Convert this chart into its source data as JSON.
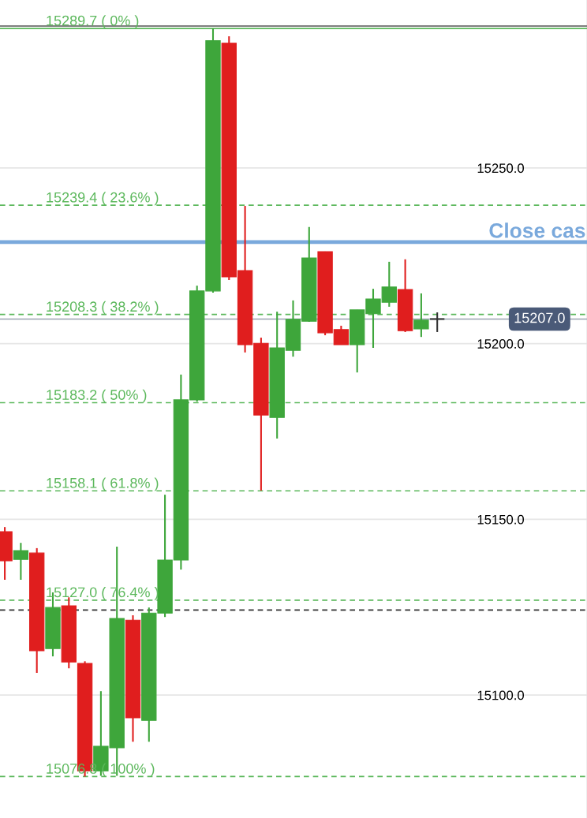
{
  "chart_data": {
    "type": "candlestick",
    "categories": [
      null,
      null,
      null,
      null,
      null,
      null,
      null,
      null,
      null,
      null,
      null,
      null,
      null,
      null,
      null,
      null,
      null,
      null,
      null,
      null,
      null,
      null,
      null,
      null,
      null,
      null,
      null,
      null
    ],
    "ohlc": [
      [
        15146.5,
        15147.8,
        15132.8,
        15138.2
      ],
      [
        15138.6,
        15143.3,
        15132.8,
        15141.1
      ],
      [
        15140.4,
        15141.8,
        15106.3,
        15112.6
      ],
      [
        15113.2,
        15129.2,
        15111.0,
        15124.9
      ],
      [
        15125.4,
        15127.8,
        15107.6,
        15109.4
      ],
      [
        15109.0,
        15109.6,
        15076.8,
        15078.4
      ],
      [
        15078.4,
        15101.1,
        15077.0,
        15085.4
      ],
      [
        15085.0,
        15142.2,
        15077.0,
        15121.8
      ],
      [
        15121.3,
        15122.7,
        15086.7,
        15093.5
      ],
      [
        15092.8,
        15124.9,
        15086.7,
        15123.3
      ],
      [
        15123.3,
        15157.0,
        15122.2,
        15138.4
      ],
      [
        15138.4,
        15191.2,
        15135.7,
        15184.0
      ],
      [
        15184.0,
        15216.5,
        15183.5,
        15215.0
      ],
      [
        15215.0,
        15289.7,
        15214.5,
        15286.2
      ],
      [
        15285.5,
        15287.5,
        15218.1,
        15219.0
      ],
      [
        15220.8,
        15239.2,
        15197.5,
        15199.7
      ],
      [
        15200.1,
        15201.7,
        15158.2,
        15179.7
      ],
      [
        15179.0,
        15209.1,
        15173.0,
        15198.8
      ],
      [
        15198.1,
        15212.3,
        15196.3,
        15206.9
      ],
      [
        15206.4,
        15233.2,
        15206.2,
        15224.4
      ],
      [
        15226.2,
        15226.2,
        15202.4,
        15203.1
      ],
      [
        15204.0,
        15205.1,
        15199.7,
        15199.7
      ],
      [
        15199.7,
        15209.6,
        15191.8,
        15209.6
      ],
      [
        15208.5,
        15215.6,
        15198.8,
        15212.7
      ],
      [
        15211.8,
        15223.3,
        15210.5,
        15216.1
      ],
      [
        15215.4,
        15224.0,
        15203.3,
        15203.7
      ],
      [
        15204.2,
        15214.3,
        15201.9,
        15206.7
      ],
      [
        15207.0,
        15208.9,
        15203.3,
        15207.0
      ]
    ],
    "colors": [
      "#e01e1e",
      "#3ea63b",
      "#e01e1e",
      "#3ea63b",
      "#e01e1e",
      "#e01e1e",
      "#3ea63b",
      "#3ea63b",
      "#e01e1e",
      "#3ea63b",
      "#3ea63b",
      "#3ea63b",
      "#3ea63b",
      "#3ea63b",
      "#e01e1e",
      "#e01e1e",
      "#e01e1e",
      "#3ea63b",
      "#3ea63b",
      "#3ea63b",
      "#e01e1e",
      "#e01e1e",
      "#3ea63b",
      "#3ea63b",
      "#3ea63b",
      "#e01e1e",
      "#3ea63b",
      "#333333"
    ],
    "ylim": [
      15065.0,
      15297.8
    ],
    "yticks": [
      {
        "value": 15100,
        "label": "15100.0"
      },
      {
        "value": 15150,
        "label": "15150.0"
      },
      {
        "value": 15200,
        "label": "15200.0"
      },
      {
        "value": 15250,
        "label": "15250.0"
      }
    ],
    "grid": "y",
    "tick_labels": "y",
    "ref_lines": [
      {
        "axis": "y",
        "value": 15289.7,
        "label": "15289.7 ( 0% )",
        "color": "#5cb85c",
        "line_style": "solid"
      },
      {
        "axis": "y",
        "value": 15239.4,
        "label": "15239.4 ( 23.6% )",
        "color": "#5cb85c",
        "line_style": "dashed"
      },
      {
        "axis": "y",
        "value": 15208.3,
        "label": "15208.3 ( 38.2% )",
        "color": "#5cb85c",
        "line_style": "dashed"
      },
      {
        "axis": "y",
        "value": 15183.2,
        "label": "15183.2 ( 50% )",
        "color": "#5cb85c",
        "line_style": "dashed"
      },
      {
        "axis": "y",
        "value": 15158.1,
        "label": "15158.1 ( 61.8% )",
        "color": "#5cb85c",
        "line_style": "dashed"
      },
      {
        "axis": "y",
        "value": 15127.0,
        "label": "15127.0 ( 76.4% )",
        "color": "#5cb85c",
        "line_style": "dashed"
      },
      {
        "axis": "y",
        "value": 15076.8,
        "label": "15076.8 ( 100% )",
        "color": "#5cb85c",
        "line_style": "dashed"
      },
      {
        "axis": "y",
        "value": 15228.9,
        "label": "Close cas",
        "color": "#7aa9dc",
        "line_style": "solid"
      },
      {
        "axis": "y",
        "value": 15207.0,
        "label": "15207.0",
        "color": "#9aa3b0",
        "line_style": "solid"
      },
      {
        "axis": "y",
        "value": 15124.2,
        "color": "#333333",
        "line_style": "dashed"
      },
      {
        "axis": "y",
        "value": 15290.4,
        "color": "#555555",
        "line_style": "solid"
      }
    ]
  }
}
